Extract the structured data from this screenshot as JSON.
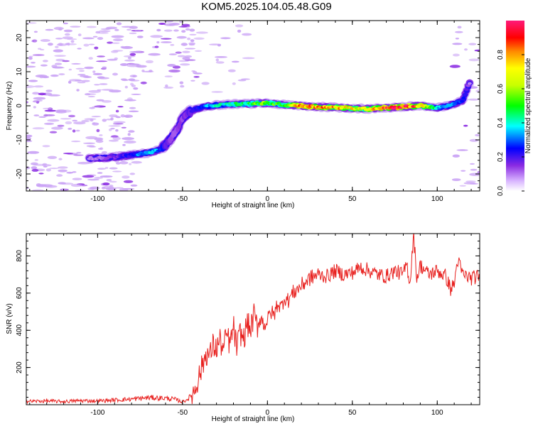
{
  "title": "KOM5.2025.104.05.48.G09",
  "colors": {
    "snr_line": "#e8211f",
    "frame": "#000000",
    "noise_blobs": "#c9a2f5"
  },
  "chart_data": [
    {
      "type": "heatmap",
      "xlabel": "Height of straight line (km)",
      "ylabel": "Frequency (Hz)",
      "xlim": [
        -142,
        125
      ],
      "ylim": [
        -25,
        25
      ],
      "xticks": [
        -100,
        -50,
        0,
        50,
        100
      ],
      "yticks": [
        -20,
        -10,
        0,
        10,
        20
      ],
      "colorbar": {
        "label": "Normalized spectral amplitude",
        "range": [
          0,
          1
        ],
        "ticks": [
          "0.0",
          "0.2",
          "0.4",
          "0.6",
          "0.8"
        ],
        "colormap": "rainbow (white-violet-blue-cyan-green-yellow-red-magenta)"
      },
      "trace": {
        "x": [
          -105,
          -95,
          -85,
          -78,
          -70,
          -63,
          -60,
          -56,
          -53,
          -50,
          -45,
          -38,
          -30,
          -20,
          -10,
          0,
          10,
          20,
          30,
          40,
          50,
          60,
          70,
          80,
          90,
          100,
          105,
          110,
          115,
          120
        ],
        "y": [
          -15.5,
          -15.2,
          -14.8,
          -14.3,
          -13.8,
          -12.8,
          -11.5,
          -9.0,
          -7.0,
          -3.5,
          -1.5,
          -0.3,
          0.2,
          0.5,
          0.6,
          0.8,
          0.3,
          0.0,
          -0.3,
          -0.5,
          -0.7,
          -0.9,
          -0.6,
          -0.3,
          0.0,
          -0.6,
          -0.2,
          0.6,
          1.5,
          8
        ],
        "amplitude": [
          0.1,
          0.12,
          0.2,
          0.28,
          0.4,
          0.3,
          0.18,
          0.15,
          0.12,
          0.15,
          0.2,
          0.3,
          0.4,
          0.45,
          0.5,
          0.55,
          0.5,
          0.92,
          0.8,
          0.78,
          0.72,
          0.7,
          0.9,
          0.95,
          0.78,
          0.4,
          0.35,
          0.3,
          0.25,
          0.08
        ]
      }
    },
    {
      "type": "line",
      "xlabel": "Height of straight line (km)",
      "ylabel": "SNR (v/v)",
      "xlim": [
        -142,
        125
      ],
      "ylim": [
        0,
        920
      ],
      "xticks": [
        -100,
        -50,
        0,
        50,
        100
      ],
      "yticks": [
        200,
        400,
        600,
        800
      ],
      "series": [
        {
          "x": [
            -142,
            -130,
            -120,
            -110,
            -100,
            -90,
            -80,
            -70,
            -60,
            -55,
            -50,
            -47,
            -44,
            -42,
            -40,
            -38,
            -36,
            -34,
            -32,
            -30,
            -28,
            -26,
            -24,
            -22,
            -20,
            -18,
            -16,
            -14,
            -12,
            -10,
            -8,
            -6,
            -4,
            -2,
            0,
            2,
            4,
            6,
            8,
            10,
            12,
            15,
            20,
            25,
            30,
            35,
            40,
            45,
            50,
            55,
            60,
            65,
            70,
            75,
            80,
            82,
            84,
            86,
            88,
            90,
            95,
            100,
            105,
            108,
            110,
            112,
            115,
            120,
            125
          ],
          "y": [
            18,
            20,
            17,
            22,
            20,
            25,
            30,
            38,
            35,
            30,
            15,
            30,
            55,
            110,
            160,
            220,
            280,
            260,
            320,
            300,
            350,
            290,
            380,
            320,
            420,
            300,
            390,
            350,
            440,
            400,
            480,
            420,
            470,
            430,
            450,
            500,
            480,
            550,
            520,
            580,
            560,
            600,
            640,
            680,
            700,
            690,
            720,
            700,
            710,
            740,
            720,
            700,
            690,
            720,
            700,
            760,
            650,
            920,
            680,
            750,
            700,
            720,
            690,
            620,
            650,
            780,
            700,
            680,
            690
          ]
        }
      ]
    }
  ]
}
